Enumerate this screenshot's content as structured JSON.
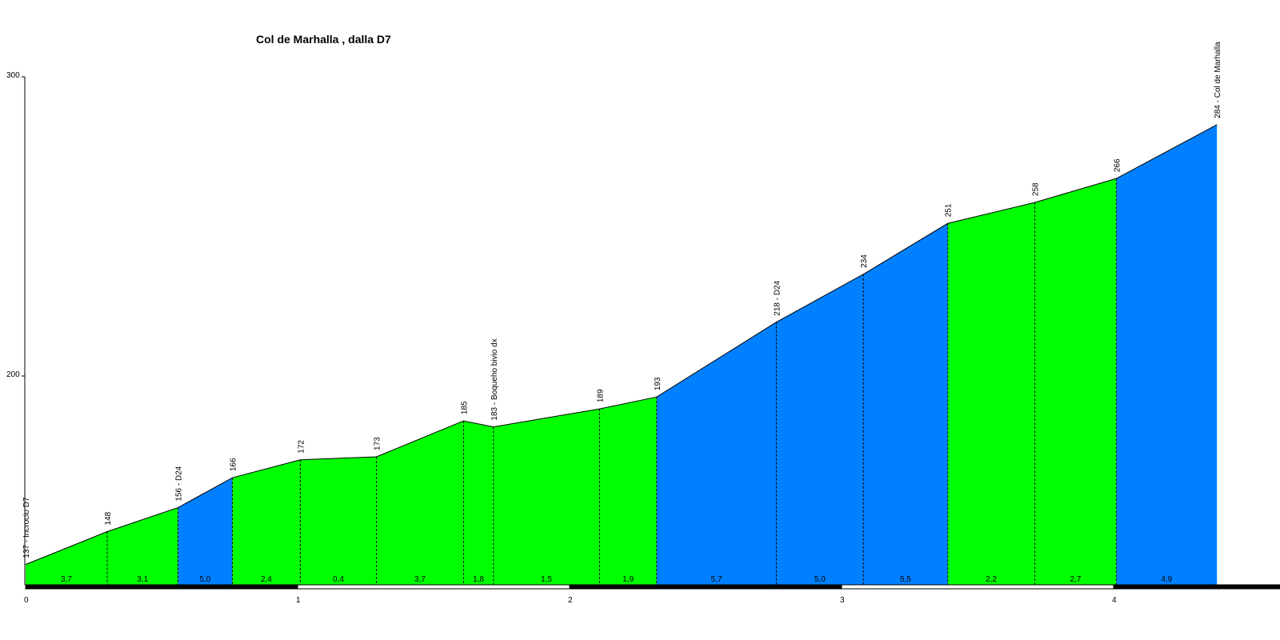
{
  "chart_data": {
    "type": "area",
    "title": "Col de Marhalla , dalla D7",
    "xlim": [
      0,
      4.6
    ],
    "ylim": [
      130,
      300
    ],
    "y_ticks": [
      200,
      300
    ],
    "x_ticks": [
      0,
      1,
      2,
      3,
      4
    ],
    "points": [
      {
        "x": 0.0,
        "y": 137,
        "label": "137 - Incrocio D7"
      },
      {
        "x": 0.3,
        "y": 148,
        "label": "148"
      },
      {
        "x": 0.56,
        "y": 156,
        "label": "156 - D24"
      },
      {
        "x": 0.76,
        "y": 166,
        "label": "166"
      },
      {
        "x": 1.01,
        "y": 172,
        "label": "172"
      },
      {
        "x": 1.29,
        "y": 173,
        "label": "173"
      },
      {
        "x": 1.61,
        "y": 185,
        "label": "185"
      },
      {
        "x": 1.72,
        "y": 183,
        "label": "183 - Boqueho bivio dx"
      },
      {
        "x": 2.11,
        "y": 189,
        "label": "189"
      },
      {
        "x": 2.32,
        "y": 193,
        "label": "193"
      },
      {
        "x": 2.76,
        "y": 218,
        "label": "218 - D24"
      },
      {
        "x": 3.08,
        "y": 234,
        "label": "234"
      },
      {
        "x": 3.39,
        "y": 251,
        "label": "251"
      },
      {
        "x": 3.71,
        "y": 258,
        "label": "258"
      },
      {
        "x": 4.01,
        "y": 266,
        "label": "266"
      },
      {
        "x": 4.38,
        "y": 284,
        "label": "284 - Col de Marhalla"
      }
    ],
    "segments": [
      {
        "gradient": "3,7",
        "color": "#00ff00"
      },
      {
        "gradient": "3,1",
        "color": "#00ff00"
      },
      {
        "gradient": "5,0",
        "color": "#0080ff"
      },
      {
        "gradient": "2,4",
        "color": "#00ff00"
      },
      {
        "gradient": "0,4",
        "color": "#00ff00"
      },
      {
        "gradient": "3,7",
        "color": "#00ff00"
      },
      {
        "gradient": "1,8",
        "color": "#00ff00"
      },
      {
        "gradient": "1,5",
        "color": "#00ff00"
      },
      {
        "gradient": "1,9",
        "color": "#00ff00"
      },
      {
        "gradient": "5,7",
        "color": "#0080ff"
      },
      {
        "gradient": "5,0",
        "color": "#0080ff"
      },
      {
        "gradient": "5,5",
        "color": "#0080ff"
      },
      {
        "gradient": "2,2",
        "color": "#00ff00"
      },
      {
        "gradient": "2,7",
        "color": "#00ff00"
      },
      {
        "gradient": "4,9",
        "color": "#0080ff"
      }
    ],
    "colors": {
      "low_gradient": "#00ff00",
      "high_gradient": "#0080ff",
      "outline": "#000000",
      "axis": "#000000"
    }
  }
}
